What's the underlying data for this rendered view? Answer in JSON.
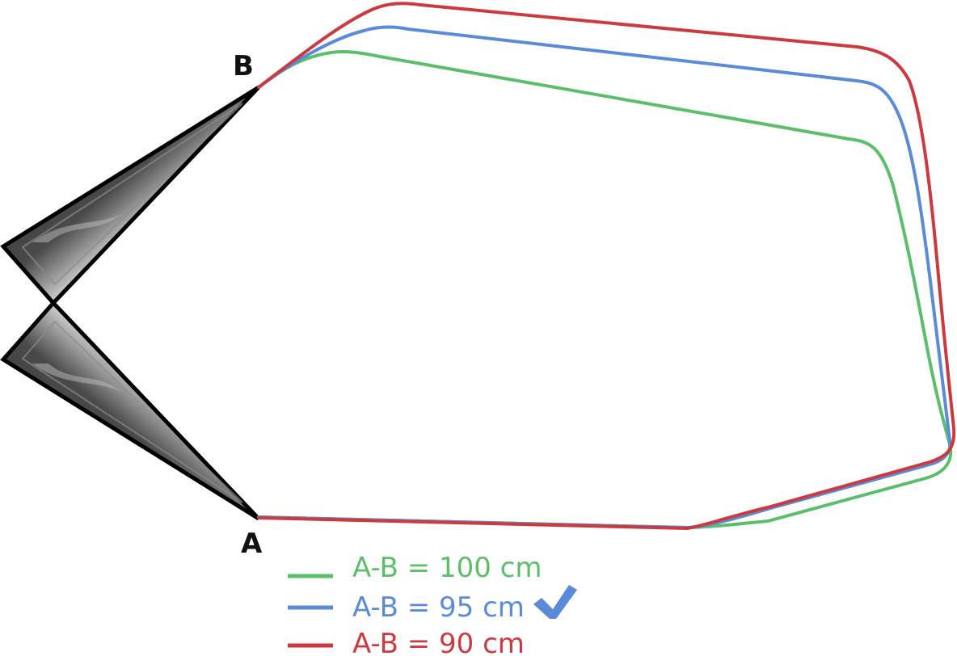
{
  "points": {
    "a": "A",
    "b": "B"
  },
  "legend": [
    {
      "label": "A-B = 100 cm",
      "color": "#5bbf6a",
      "checked": false
    },
    {
      "label": "A-B = 95 cm",
      "color": "#5b8bd8",
      "checked": true
    },
    {
      "label": "A-B = 90 cm",
      "color": "#cc3a3f",
      "checked": false
    }
  ],
  "icons": {
    "check": "check-icon"
  }
}
